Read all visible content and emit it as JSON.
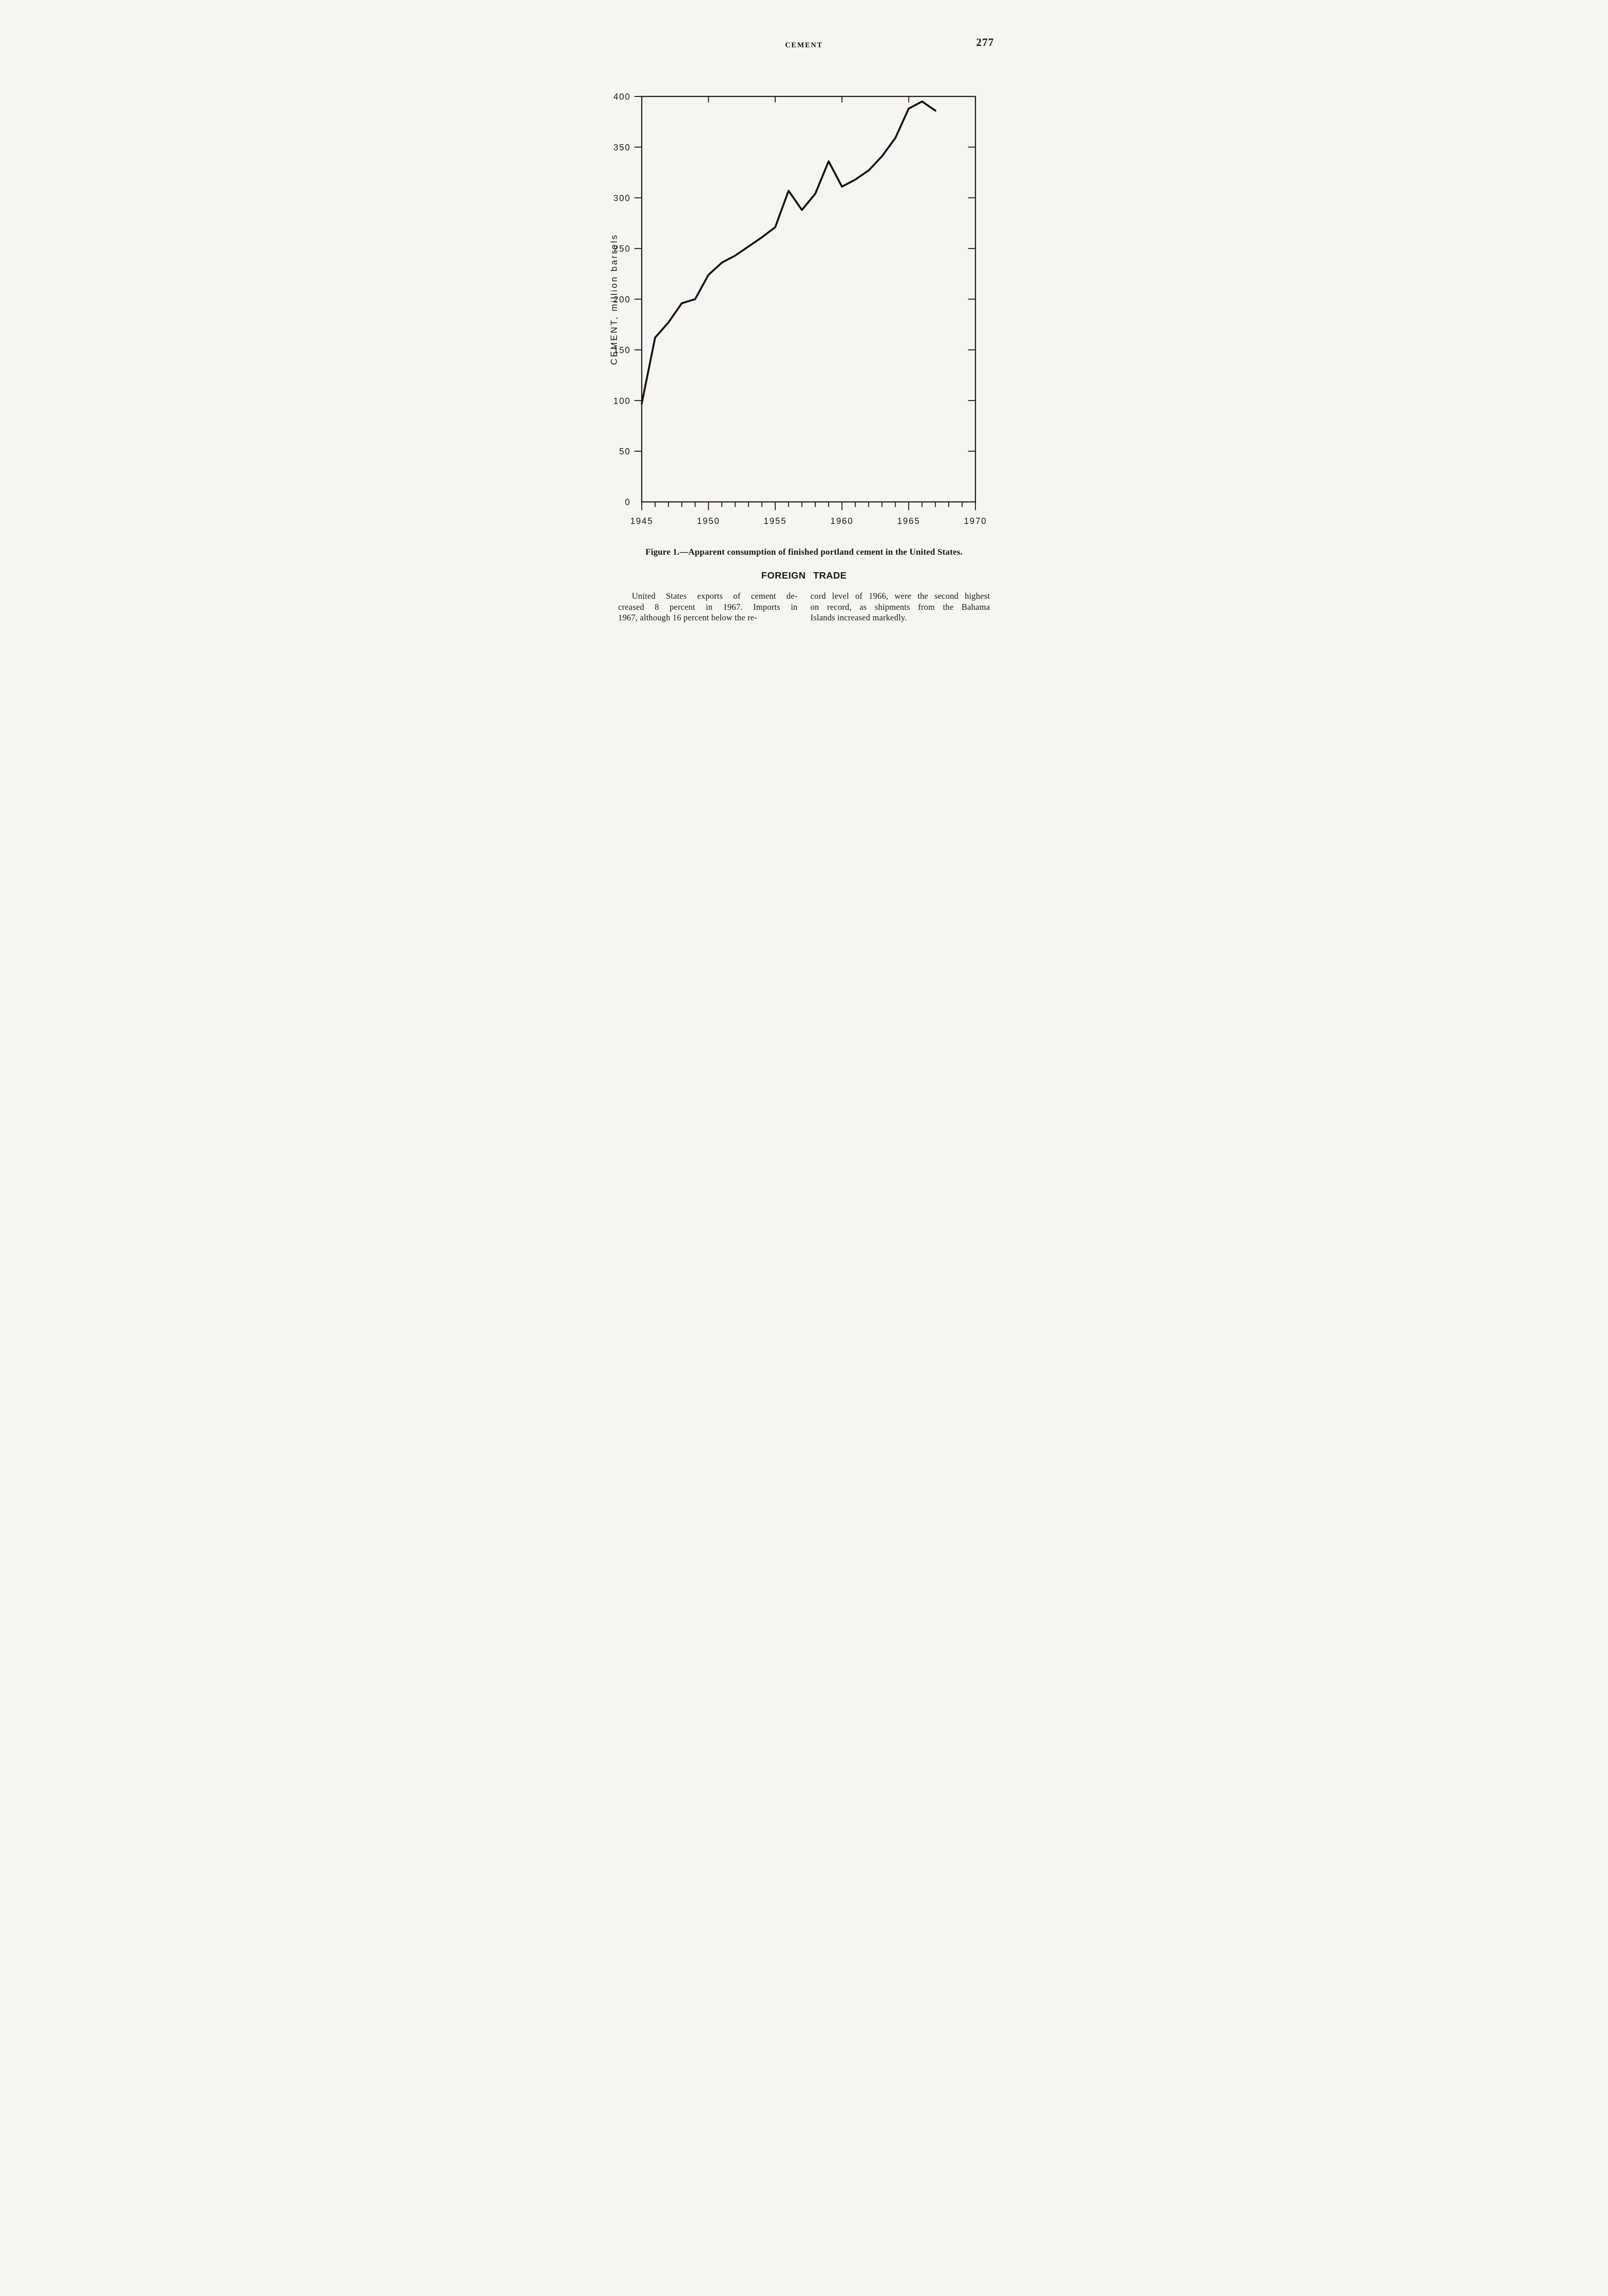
{
  "page": {
    "running_header": "CEMENT",
    "page_number": "277"
  },
  "chart_data": {
    "type": "line",
    "title": "",
    "xlabel": "",
    "ylabel": "CEMENT, million barrels",
    "xlim": [
      1945,
      1970
    ],
    "ylim": [
      0,
      400
    ],
    "y_ticks": [
      0,
      50,
      100,
      150,
      200,
      250,
      300,
      350,
      400
    ],
    "x_tick_labels": [
      "1945",
      "1950",
      "1955",
      "1960",
      "1965",
      "1970"
    ],
    "x_minor_tick_step_years": 1,
    "top_ticks": [
      1950,
      1955,
      1960,
      1965
    ],
    "grid": false,
    "legend": false,
    "ink_color": "#17140e",
    "series": [
      {
        "name": "Apparent consumption of finished portland cement, United States",
        "x": [
          1945,
          1946,
          1947,
          1948,
          1949,
          1950,
          1951,
          1952,
          1953,
          1954,
          1955,
          1956,
          1957,
          1958,
          1959,
          1960,
          1961,
          1962,
          1963,
          1964,
          1965,
          1966,
          1967
        ],
        "y": [
          97,
          162,
          177,
          196,
          200,
          224,
          236,
          243,
          252,
          261,
          271,
          307,
          288,
          304,
          336,
          311,
          318,
          327,
          341,
          359,
          388,
          395,
          386
        ]
      }
    ]
  },
  "figure": {
    "caption": "Figure 1.—Apparent consumption of finished portland cement in the United States."
  },
  "foreign_trade": {
    "heading": "FOREIGN TRADE",
    "left_lines": [
      "United States exports of cement de-",
      "creased 8 percent in 1967. Imports in",
      "1967, although 16 percent below the re-"
    ],
    "right_lines": [
      "cord level of 1966, were the second highest",
      "on record, as shipments from the Bahama",
      "Islands increased markedly."
    ]
  }
}
